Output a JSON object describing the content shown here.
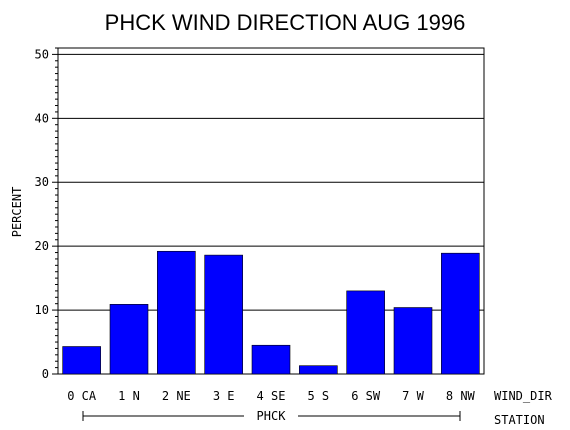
{
  "chart_data": {
    "type": "bar",
    "title": "PHCK WIND DIRECTION AUG 1996",
    "ylabel": "PERCENT",
    "xlabel": "WIND_DIR",
    "group_label": "STATION",
    "group_name": "PHCK",
    "categories": [
      "0 CA",
      "1 N",
      "2 NE",
      "3 E",
      "4 SE",
      "5 S",
      "6 SW",
      "7 W",
      "8 NW"
    ],
    "values": [
      4.3,
      10.9,
      19.2,
      18.6,
      4.5,
      1.3,
      13.0,
      10.4,
      18.9
    ],
    "ylim": [
      0,
      51
    ],
    "yticks": [
      0,
      10,
      20,
      30,
      40,
      50
    ],
    "grid": true,
    "bar_color": "#0000ff"
  }
}
